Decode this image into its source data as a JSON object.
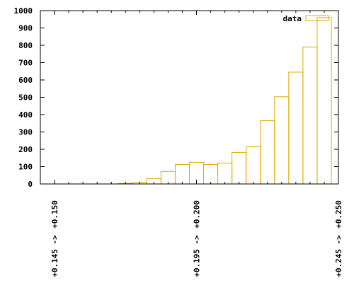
{
  "chart_data": {
    "type": "bar",
    "style": "histogram-outline",
    "series": [
      {
        "name": "data",
        "color": "#e0a800",
        "bins": [
          {
            "x0": 0.1975,
            "x1": 0.2025,
            "y": 125
          },
          {
            "x0": 0.2025,
            "x1": 0.2075,
            "y": 112
          },
          {
            "x0": 0.2075,
            "x1": 0.2125,
            "y": 120
          },
          {
            "x0": 0.2125,
            "x1": 0.2175,
            "y": 182
          },
          {
            "x0": 0.2175,
            "x1": 0.2225,
            "y": 215
          },
          {
            "x0": 0.2225,
            "x1": 0.2275,
            "y": 365
          },
          {
            "x0": 0.2275,
            "x1": 0.2325,
            "y": 503
          },
          {
            "x0": 0.2325,
            "x1": 0.2375,
            "y": 645
          },
          {
            "x0": 0.2375,
            "x1": 0.2425,
            "y": 790
          },
          {
            "x0": 0.2425,
            "x1": 0.2475,
            "y": 960
          },
          {
            "x0": 0.1925,
            "x1": 0.1975,
            "y": 112
          },
          {
            "x0": 0.1875,
            "x1": 0.1925,
            "y": 72
          },
          {
            "x0": 0.1825,
            "x1": 0.1875,
            "y": 30
          },
          {
            "x0": 0.1775,
            "x1": 0.1825,
            "y": 8
          },
          {
            "x0": 0.1725,
            "x1": 0.1775,
            "y": 3
          }
        ]
      }
    ],
    "xlim": [
      0.145,
      0.25
    ],
    "ylim": [
      0,
      1000
    ],
    "yticks": [
      0,
      100,
      200,
      300,
      400,
      500,
      600,
      700,
      800,
      900,
      1000
    ],
    "xticks_major": [
      {
        "value": 0.15,
        "label": "+0.150",
        "range_label": "+0.145 ->"
      },
      {
        "value": 0.2,
        "label": "+0.200",
        "range_label": "+0.195 ->"
      },
      {
        "value": 0.25,
        "label": "+0.250",
        "range_label": "+0.245 ->"
      }
    ],
    "xtick_minor_step": 0.005,
    "legend": {
      "position": "top-right",
      "label": "data"
    },
    "grid": false
  }
}
